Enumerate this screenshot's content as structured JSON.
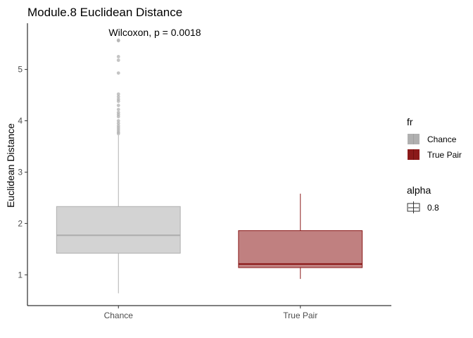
{
  "chart_data": {
    "type": "boxplot",
    "title": "Module.8 Euclidean Distance",
    "xlabel": "",
    "ylabel": "Euclidean Distance",
    "categories": [
      "Chance",
      "True Pair"
    ],
    "y_ticks": [
      1,
      2,
      3,
      4,
      5
    ],
    "ylim": [
      0.4,
      5.9
    ],
    "grid": false,
    "annotation": "Wilcoxon, p = 0.0018",
    "boxes": [
      {
        "category": "Chance",
        "whisker_low": 0.64,
        "q1": 1.42,
        "median": 1.77,
        "q3": 2.33,
        "whisker_high": 3.72,
        "outliers": [
          3.75,
          3.78,
          3.82,
          3.86,
          3.9,
          3.95,
          4.0,
          4.08,
          4.12,
          4.16,
          4.22,
          4.3,
          4.38,
          4.42,
          4.47,
          4.52,
          4.93,
          5.18,
          5.25,
          5.56,
          5.57
        ],
        "fill": "#d3d3d3",
        "line": "#b0b0b0"
      },
      {
        "category": "True Pair",
        "whisker_low": 0.92,
        "q1": 1.14,
        "median": 1.21,
        "q3": 1.86,
        "whisker_high": 2.58,
        "outliers": [],
        "fill": "#c08080",
        "line": "#8b1a1a"
      }
    ],
    "legends": [
      {
        "title": "fr",
        "position": "right",
        "items": [
          {
            "label": "Chance",
            "color": "#b0b0b0"
          },
          {
            "label": "True Pair",
            "color": "#8b1a1a"
          }
        ]
      },
      {
        "title": "alpha",
        "position": "right",
        "items": [
          {
            "label": "0.8",
            "color": "#ffffff"
          }
        ]
      }
    ]
  }
}
